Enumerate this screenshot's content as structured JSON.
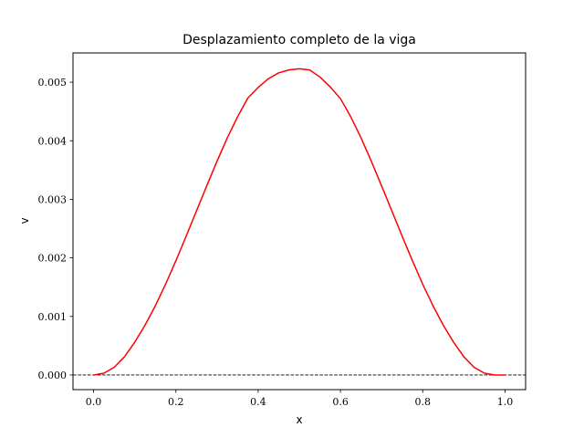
{
  "chart_data": {
    "type": "line",
    "title": "Desplazamiento completo de la viga",
    "xlabel": "x",
    "ylabel": "v",
    "xlim": [
      -0.05,
      1.05
    ],
    "ylim": [
      -0.00025,
      0.0055
    ],
    "xticks": [
      0.0,
      0.2,
      0.4,
      0.6,
      0.8,
      1.0
    ],
    "xtick_labels": [
      "0.0",
      "0.2",
      "0.4",
      "0.6",
      "0.8",
      "1.0"
    ],
    "yticks": [
      0.0,
      0.001,
      0.002,
      0.003,
      0.004,
      0.005
    ],
    "ytick_labels": [
      "0.000",
      "0.001",
      "0.002",
      "0.003",
      "0.004",
      "0.005"
    ],
    "grid": false,
    "reference_line": {
      "y": 0.0,
      "style": "dashed",
      "color": "#000000"
    },
    "series": [
      {
        "color": "#ff0000",
        "x": [
          0.0,
          0.025,
          0.05,
          0.075,
          0.1,
          0.125,
          0.15,
          0.175,
          0.2,
          0.225,
          0.25,
          0.275,
          0.3,
          0.325,
          0.35,
          0.375,
          0.4,
          0.425,
          0.45,
          0.475,
          0.5,
          0.525,
          0.55,
          0.575,
          0.6,
          0.625,
          0.65,
          0.675,
          0.7,
          0.725,
          0.75,
          0.775,
          0.8,
          0.825,
          0.85,
          0.875,
          0.9,
          0.925,
          0.95,
          0.975,
          1.0
        ],
        "y": [
          0.0,
          3e-05,
          0.00013,
          0.00031,
          0.00056,
          0.00085,
          0.00118,
          0.00155,
          0.00195,
          0.00237,
          0.0028,
          0.00323,
          0.00365,
          0.00405,
          0.00441,
          0.00473,
          0.00491,
          0.00506,
          0.00516,
          0.00521,
          0.00523,
          0.00521,
          0.00509,
          0.00492,
          0.00472,
          0.00441,
          0.00405,
          0.00365,
          0.00323,
          0.0028,
          0.00237,
          0.00195,
          0.00155,
          0.00118,
          0.00085,
          0.00056,
          0.00031,
          0.00013,
          3e-05,
          0.0,
          0.0
        ]
      }
    ]
  }
}
